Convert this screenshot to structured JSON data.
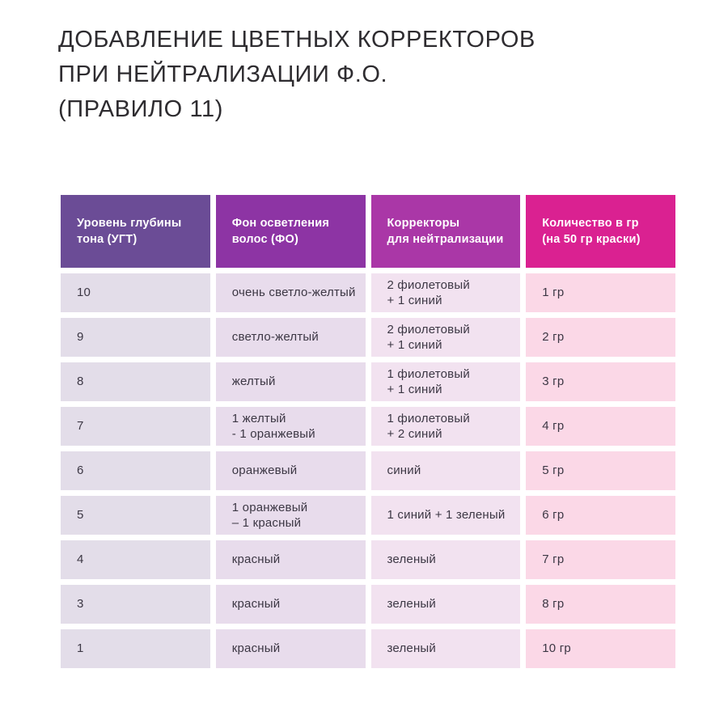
{
  "title": {
    "lines": [
      "ДОБАВЛЕНИЕ ЦВЕТНЫХ КОРРЕКТОРОВ",
      "ПРИ НЕЙТРАЛИЗАЦИИ Ф.О.",
      "(ПРАВИЛО 11)"
    ]
  },
  "table": {
    "columns": [
      {
        "label": "Уровень глубины\nтона (УГТ)",
        "header_bg": "#6b4c96",
        "cell_bg": "#e3dde9"
      },
      {
        "label": "Фон осветления\nволос (ФО)",
        "header_bg": "#8d34a4",
        "cell_bg": "#e8dcec"
      },
      {
        "label": "Корректоры\nдля нейтрализации",
        "header_bg": "#aa37a7",
        "cell_bg": "#f2e2f0"
      },
      {
        "label": "Количество в гр\n(на 50 гр краски)",
        "header_bg": "#da2191",
        "cell_bg": "#fbd8e7"
      }
    ],
    "rows": [
      [
        "10",
        "очень светло-желтый",
        "2 фиолетовый\n+ 1 синий",
        "1 гр"
      ],
      [
        "9",
        "светло-желтый",
        "2 фиолетовый\n+ 1 синий",
        "2 гр"
      ],
      [
        "8",
        "желтый",
        "1 фиолетовый\n+ 1 синий",
        "3 гр"
      ],
      [
        "7",
        "1 желтый\n- 1 оранжевый",
        "1 фиолетовый\n+ 2 синий",
        "4 гр"
      ],
      [
        "6",
        "оранжевый",
        "синий",
        "5 гр"
      ],
      [
        "5",
        "1 оранжевый\n– 1 красный",
        "1 синий + 1 зеленый",
        "6 гр"
      ],
      [
        "4",
        "красный",
        "зеленый",
        "7 гр"
      ],
      [
        "3",
        "красный",
        "зеленый",
        "8 гр"
      ],
      [
        "1",
        "красный",
        "зеленый",
        "10 гр"
      ]
    ]
  },
  "chart_data": {
    "type": "table",
    "title": "ДОБАВЛЕНИЕ ЦВЕТНЫХ КОРРЕКТОРОВ ПРИ НЕЙТРАЛИЗАЦИИ Ф.О. (ПРАВИЛО 11)",
    "columns": [
      "Уровень глубины тона (УГТ)",
      "Фон осветления волос (ФО)",
      "Корректоры для нейтрализации",
      "Количество в гр (на 50 гр краски)"
    ],
    "rows": [
      [
        "10",
        "очень светло-желтый",
        "2 фиолетовый + 1 синий",
        "1 гр"
      ],
      [
        "9",
        "светло-желтый",
        "2 фиолетовый + 1 синий",
        "2 гр"
      ],
      [
        "8",
        "желтый",
        "1 фиолетовый + 1 синий",
        "3 гр"
      ],
      [
        "7",
        "1 желтый - 1 оранжевый",
        "1 фиолетовый + 2 синий",
        "4 гр"
      ],
      [
        "6",
        "оранжевый",
        "синий",
        "5 гр"
      ],
      [
        "5",
        "1 оранжевый – 1 красный",
        "1 синий + 1 зеленый",
        "6 гр"
      ],
      [
        "4",
        "красный",
        "зеленый",
        "7 гр"
      ],
      [
        "3",
        "красный",
        "зеленый",
        "8 гр"
      ],
      [
        "1",
        "красный",
        "зеленый",
        "10 гр"
      ]
    ],
    "colors": {
      "header_backgrounds": [
        "#6b4c96",
        "#8d34a4",
        "#aa37a7",
        "#da2191"
      ],
      "cell_backgrounds": [
        "#e3dde9",
        "#e8dcec",
        "#f2e2f0",
        "#fbd8e7"
      ],
      "header_text": "#ffffff",
      "body_text": "#3c3744",
      "title_text": "#2e2c30"
    },
    "layout_hints": {
      "grid": false,
      "column_count": 4,
      "row_count": 9
    }
  }
}
